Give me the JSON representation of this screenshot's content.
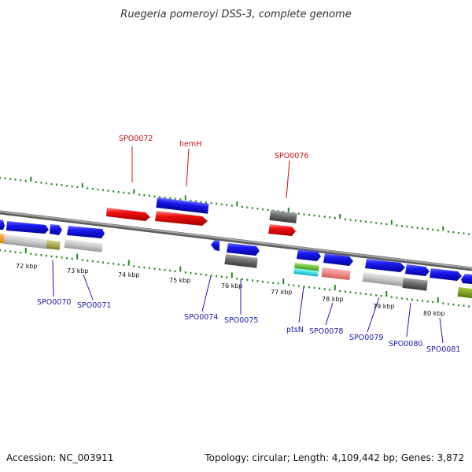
{
  "title": "Ruegeria pomeroyi DSS-3, complete genome",
  "footer": {
    "accession": "Accession: NC_003911",
    "summary": "Topology: circular; Length: 4,109,442 bp; Genes: 3,872"
  },
  "colors": {
    "backbone": "#888888",
    "tick": "#228b22",
    "forward_gene": "#1010e0",
    "highlight_gene": "#ee1c1c",
    "label_blue": "#1a1ab0",
    "label_red": "#cc1111"
  },
  "kbp_labels": [
    "72 kbp",
    "73 kbp",
    "74 kbp",
    "75 kbp",
    "76 kbp",
    "77 kbp",
    "78 kbp",
    "79 kbp",
    "80 kbp"
  ],
  "gene_labels": {
    "spo0070": "SPO0070",
    "spo0071": "SPO0071",
    "spo0072": "SPO0072",
    "hemH": "hemH",
    "spo0074": "SPO0074",
    "spo0075": "SPO0075",
    "spo0076": "SPO0076",
    "ptsN": "ptsN",
    "spo0078": "SPO0078",
    "spo0079": "SPO0079",
    "spo0080": "SPO0080",
    "spo0081": "SPO0081"
  }
}
